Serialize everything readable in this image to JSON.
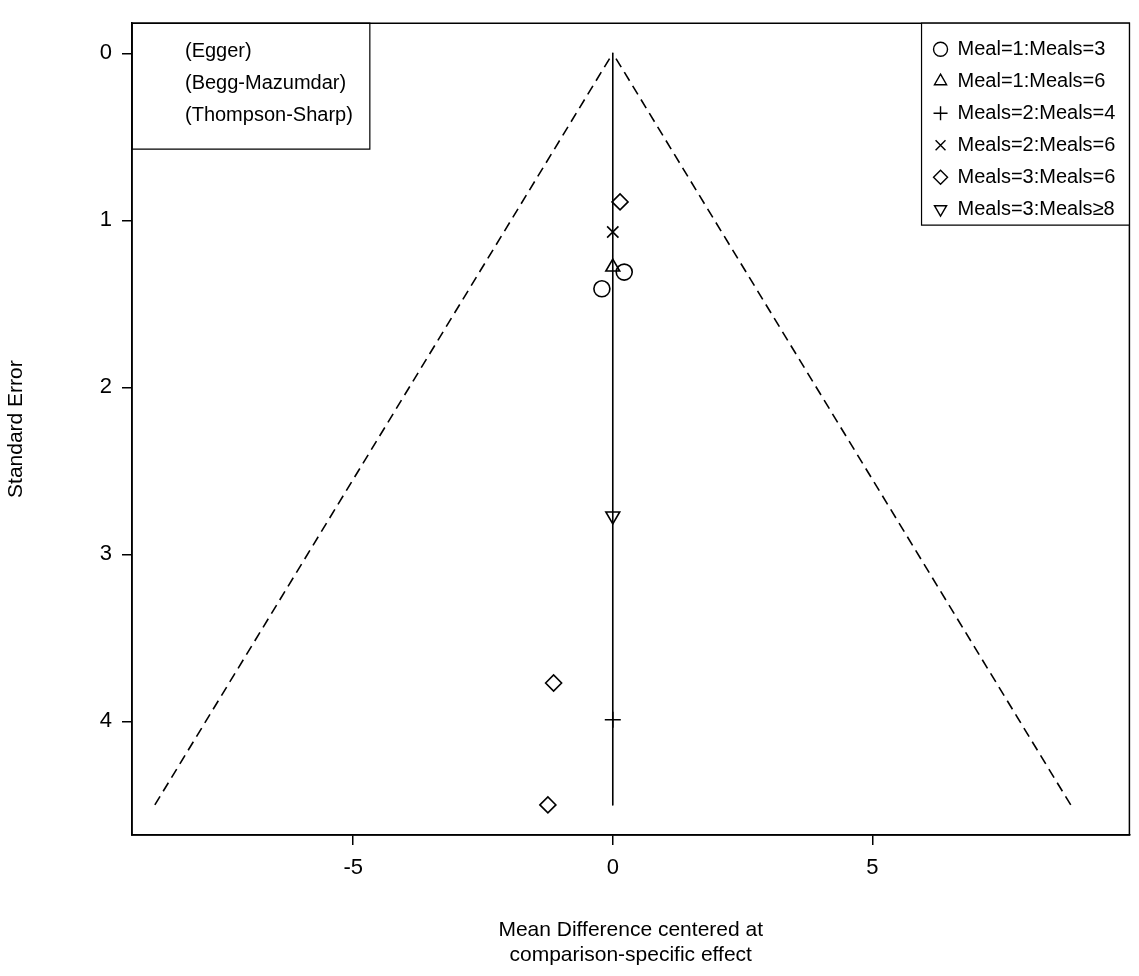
{
  "chart_data": {
    "type": "scatter",
    "xlabel": "Mean Difference centered at\ncomparison-specific effect",
    "ylabel": "Standard Error",
    "xlim": [
      -9.26,
      9.95
    ],
    "ylim": [
      4.68,
      -0.18
    ],
    "xticks": [
      -5,
      0,
      5
    ],
    "yticks": [
      0,
      1,
      2,
      3,
      4
    ],
    "legend": "top right",
    "annotations": [
      "(Egger)",
      "(Begg-Mazumdar)",
      "(Thompson-Sharp)"
    ],
    "series": [
      {
        "type": "line",
        "color": "#000000",
        "marker": "none",
        "line_style": "dashed",
        "x": [
          -8.82,
          0
        ],
        "values": [
          4.5,
          0
        ]
      },
      {
        "type": "line",
        "color": "#000000",
        "marker": "none",
        "line_style": "dashed",
        "x": [
          8.82,
          0
        ],
        "values": [
          4.5,
          0
        ]
      },
      {
        "type": "line",
        "color": "#000000",
        "marker": "none",
        "line_style": "solid",
        "x": [
          0,
          0
        ],
        "values": [
          0,
          4.5
        ]
      },
      {
        "name": "Meal=1:Meals=3",
        "color": "#000000",
        "marker": "circle",
        "x": [
          -0.21,
          0.22
        ],
        "values": [
          1.41,
          1.31
        ]
      },
      {
        "name": "Meal=1:Meals=6",
        "color": "#000000",
        "marker": "triangle",
        "x": [
          0
        ],
        "values": [
          1.28
        ]
      },
      {
        "name": "Meals=2:Meals=4",
        "color": "#000000",
        "marker": "cross",
        "x": [
          0
        ],
        "values": [
          3.99
        ]
      },
      {
        "name": "Meals=2:Meals=6",
        "color": "#000000",
        "marker": "x",
        "x": [
          0
        ],
        "values": [
          1.07
        ]
      },
      {
        "name": "Meals=3:Meals=6",
        "color": "#000000",
        "marker": "diamond",
        "x": [
          0.14,
          -1.14,
          -1.25
        ],
        "values": [
          0.89,
          3.77,
          4.5
        ]
      },
      {
        "name": "Meals=3:Meals≥8",
        "color": "#000000",
        "marker": "triangle_down",
        "x": [
          0
        ],
        "values": [
          2.77
        ]
      }
    ]
  }
}
